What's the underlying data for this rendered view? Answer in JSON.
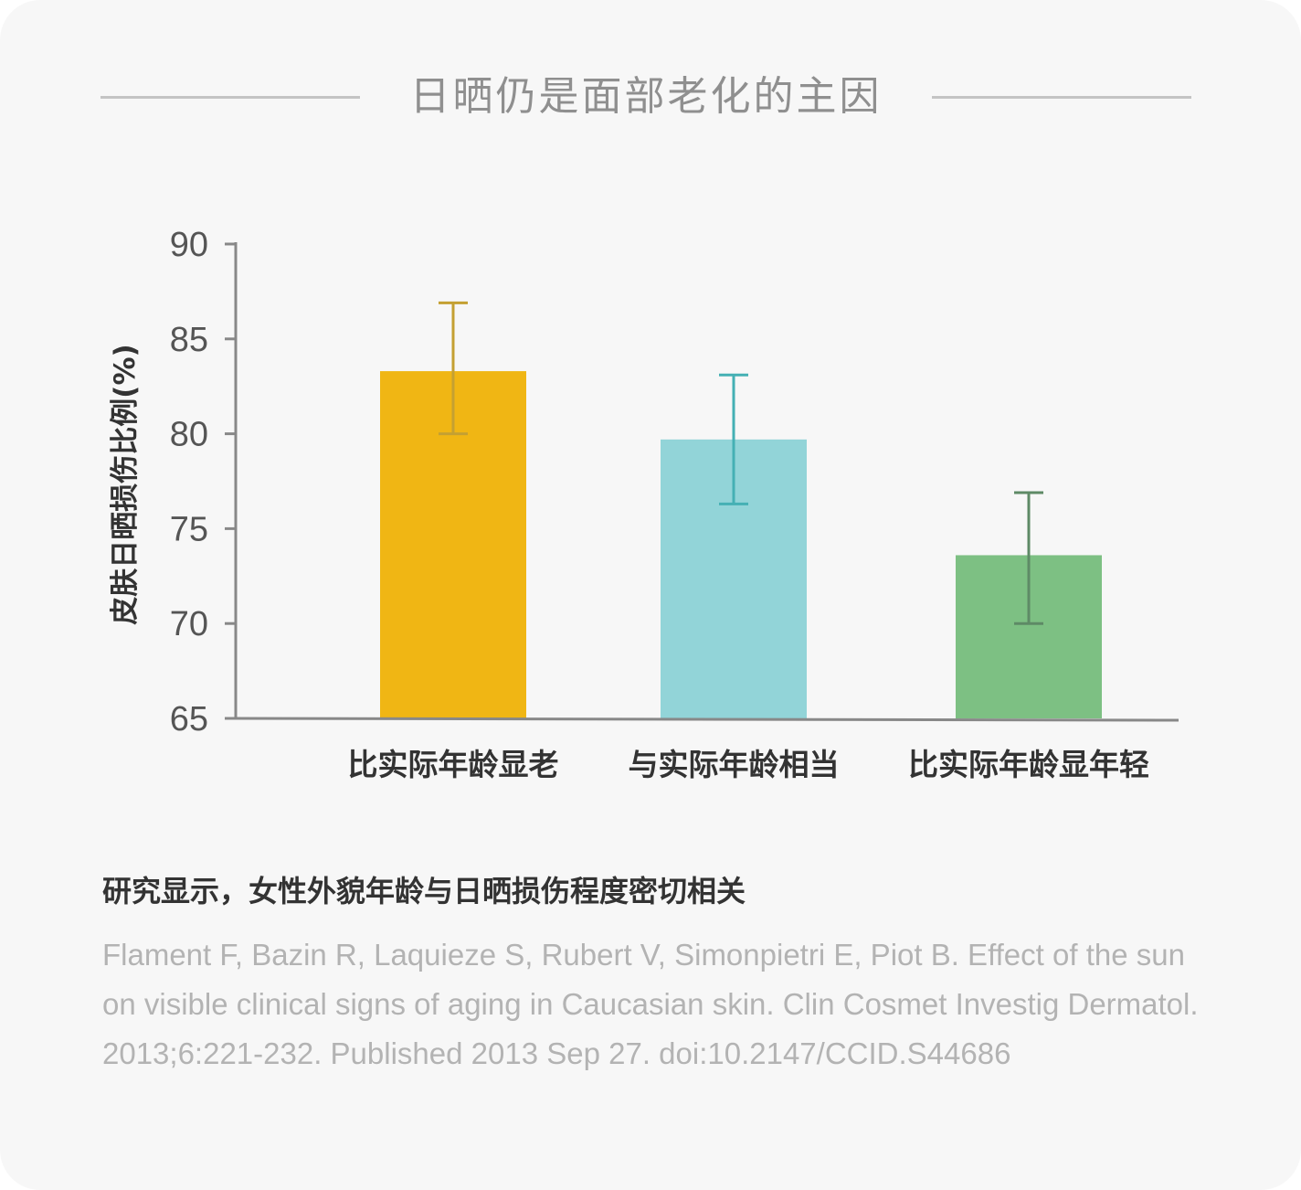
{
  "header": {
    "title": "日晒仍是面部老化的主因"
  },
  "colors": {
    "bar_old": "#f0b614",
    "bar_same": "#92d4d8",
    "bar_young": "#7dc083",
    "err_old": "#c4a032",
    "err_same": "#45b0b4",
    "err_young": "#5e8a66",
    "axis": "#888888",
    "tick_text": "#555555"
  },
  "chart_data": {
    "type": "bar",
    "title": "",
    "xlabel": "",
    "ylabel": "皮肤日晒损伤比例(%)",
    "ylim": [
      65,
      90
    ],
    "yticks": [
      "65",
      "70",
      "75",
      "80",
      "85",
      "90"
    ],
    "categories": [
      "比实际年龄显老",
      "与实际年龄相当",
      "比实际年龄显年轻"
    ],
    "values": [
      83.3,
      79.7,
      73.6
    ],
    "error_low": [
      80.0,
      76.3,
      70.0
    ],
    "error_high": [
      86.9,
      83.1,
      76.9
    ],
    "grid": false
  },
  "footer": {
    "caption": "研究显示，女性外貌年龄与日晒损伤程度密切相关",
    "citation": "Flament F, Bazin R, Laquieze S, Rubert V, Simonpietri E, Piot B. Effect of the sun on visible clinical signs of aging in Caucasian skin. Clin Cosmet Investig Dermatol. 2013;6:221-232. Published 2013 Sep 27. doi:10.2147/CCID.S44686"
  }
}
